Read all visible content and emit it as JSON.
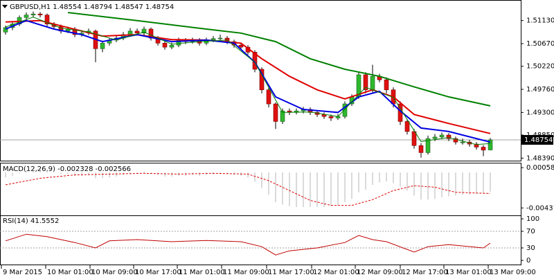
{
  "chart_data": [
    {
      "type": "candlestick",
      "title": "GBPUSD,H1",
      "up_color": "#2fb82f",
      "down_color": "#e01010",
      "price_line": true,
      "xlim": [
        -0.8,
        74.4
      ],
      "xticks": [
        {
          "value": -0.6,
          "label": "9 Mar 2015"
        },
        {
          "value": 5.8,
          "label": "10 Mar 01:00"
        },
        {
          "value": 12.2,
          "label": "10 Mar 09:00"
        },
        {
          "value": 18.5,
          "label": "10 Mar 17:00"
        },
        {
          "value": 24.8,
          "label": "11 Mar 01:00"
        },
        {
          "value": 31.2,
          "label": "11 Mar 09:00"
        },
        {
          "value": 37.7,
          "label": "11 Mar 17:00"
        },
        {
          "value": 44.2,
          "label": "12 Mar 01:00"
        },
        {
          "value": 50.5,
          "label": "12 Mar 09:00"
        },
        {
          "value": 57,
          "label": "12 Mar 17:00"
        },
        {
          "value": 63.3,
          "label": "13 Mar 01:00"
        },
        {
          "value": 69.7,
          "label": "13 Mar 09:00"
        }
      ],
      "ylim": [
        1.4834,
        1.5147
      ],
      "yticks": [
        {
          "value": 1.5113,
          "label": "1.51130"
        },
        {
          "value": 1.5067,
          "label": "1.50670"
        },
        {
          "value": 1.5022,
          "label": "1.50220"
        },
        {
          "value": 1.4976,
          "label": "1.49760"
        },
        {
          "value": 1.493,
          "label": "1.49300"
        },
        {
          "value": 1.4885,
          "label": "1.48850"
        },
        {
          "value": 1.4839,
          "label": "1.48390"
        }
      ],
      "open": [
        1.509,
        1.5099,
        1.5106,
        1.5119,
        1.5124,
        1.5126,
        1.5124,
        1.5106,
        1.5101,
        1.5092,
        1.5096,
        1.5085,
        1.5088,
        1.5092,
        1.5057,
        1.5068,
        1.5074,
        1.5078,
        1.5085,
        1.5092,
        1.5088,
        1.5096,
        1.5078,
        1.5068,
        1.506,
        1.5064,
        1.5074,
        1.5071,
        1.5074,
        1.5068,
        1.5074,
        1.5077,
        1.5078,
        1.5071,
        1.5064,
        1.506,
        1.505,
        1.5016,
        1.4975,
        1.4947,
        1.4912,
        1.4933,
        1.493,
        1.4933,
        1.4936,
        1.493,
        1.4926,
        1.4922,
        1.4919,
        1.4922,
        1.4947,
        1.4961,
        1.5005,
        1.4975,
        1.5002,
        1.4995,
        1.4975,
        1.4947,
        1.4912,
        1.4892,
        1.4864,
        1.485,
        1.4878,
        1.4881,
        1.4885,
        1.4878,
        1.4871,
        1.4871,
        1.4867,
        1.4861,
        1.48554
      ],
      "high": [
        1.5103,
        1.511,
        1.5123,
        1.5129,
        1.5131,
        1.513,
        1.5127,
        1.511,
        1.5105,
        1.5101,
        1.51,
        1.5093,
        1.5097,
        1.5095,
        1.5073,
        1.5079,
        1.5083,
        1.509,
        1.5098,
        1.5097,
        1.5101,
        1.5099,
        1.5082,
        1.5072,
        1.5069,
        1.5079,
        1.5078,
        1.5079,
        1.5078,
        1.5079,
        1.5082,
        1.5085,
        1.5082,
        1.5075,
        1.5068,
        1.5064,
        1.5054,
        1.502,
        1.4979,
        1.495,
        1.4938,
        1.4938,
        1.4938,
        1.4941,
        1.494,
        1.4934,
        1.493,
        1.4926,
        1.4927,
        1.4952,
        1.4966,
        1.5011,
        1.501,
        1.5025,
        1.5007,
        1.5,
        1.498,
        1.4952,
        1.4917,
        1.4897,
        1.4869,
        1.4884,
        1.4887,
        1.489,
        1.4889,
        1.4882,
        1.4878,
        1.4875,
        1.4871,
        1.4865,
        1.48794
      ],
      "low": [
        1.5085,
        1.5094,
        1.5102,
        1.5115,
        1.5119,
        1.5119,
        1.5101,
        1.5096,
        1.5087,
        1.5088,
        1.508,
        1.5081,
        1.5084,
        1.503,
        1.505,
        1.5063,
        1.507,
        1.5074,
        1.5081,
        1.5083,
        1.5084,
        1.5073,
        1.5063,
        1.5055,
        1.5056,
        1.506,
        1.5066,
        1.5067,
        1.5063,
        1.5064,
        1.507,
        1.5073,
        1.5066,
        1.5059,
        1.5055,
        1.5045,
        1.501,
        1.4968,
        1.494,
        1.4897,
        1.4907,
        1.4925,
        1.4926,
        1.4928,
        1.4925,
        1.4921,
        1.4917,
        1.4913,
        1.4915,
        1.4918,
        1.4943,
        1.4957,
        1.4968,
        1.497,
        1.499,
        1.4968,
        1.494,
        1.4905,
        1.4886,
        1.4858,
        1.484,
        1.4846,
        1.4873,
        1.4877,
        1.4873,
        1.4866,
        1.4866,
        1.4862,
        1.4856,
        1.4843,
        1.48547
      ],
      "close": [
        1.5099,
        1.5106,
        1.5119,
        1.5124,
        1.5126,
        1.5124,
        1.5106,
        1.5101,
        1.5092,
        1.5096,
        1.5085,
        1.5088,
        1.5092,
        1.5057,
        1.5068,
        1.5074,
        1.5078,
        1.5085,
        1.5092,
        1.5088,
        1.5096,
        1.5078,
        1.5068,
        1.506,
        1.5064,
        1.5074,
        1.5071,
        1.5074,
        1.5068,
        1.5074,
        1.5077,
        1.5078,
        1.5071,
        1.5064,
        1.506,
        1.505,
        1.5016,
        1.4975,
        1.4947,
        1.4912,
        1.4933,
        1.493,
        1.4933,
        1.4936,
        1.493,
        1.4926,
        1.4922,
        1.4919,
        1.4922,
        1.4947,
        1.4961,
        1.5005,
        1.4975,
        1.5002,
        1.4995,
        1.4975,
        1.4947,
        1.4912,
        1.4892,
        1.4864,
        1.485,
        1.4878,
        1.4881,
        1.4885,
        1.4878,
        1.4871,
        1.4871,
        1.4867,
        1.4861,
        1.4855,
        1.48754
      ],
      "series": [
        {
          "type": "line",
          "color": "#008000",
          "width": 2,
          "x": [
            9,
            19,
            29,
            34,
            39,
            44,
            49,
            54,
            59,
            64,
            70
          ],
          "values": [
            1.5129,
            1.5113,
            1.5096,
            1.5088,
            1.5071,
            1.5037,
            1.5016,
            1.5002,
            1.4981,
            1.4961,
            1.4943
          ]
        },
        {
          "type": "line",
          "color": "#e00000",
          "width": 2,
          "x": [
            0,
            5,
            9,
            14,
            19,
            24,
            29,
            34,
            37,
            41,
            45,
            49,
            53,
            56,
            59,
            64,
            70
          ],
          "values": [
            1.511,
            1.5113,
            1.5099,
            1.5082,
            1.5085,
            1.5075,
            1.5074,
            1.5068,
            1.5037,
            1.5002,
            1.4975,
            1.4957,
            1.4975,
            1.4961,
            1.4926,
            1.4908,
            1.4888
          ]
        },
        {
          "type": "line",
          "color": "#0000e0",
          "width": 2,
          "x": [
            0,
            3,
            7,
            11,
            14,
            19,
            24,
            29,
            33,
            36,
            39,
            43,
            48,
            51,
            54,
            57,
            60,
            64,
            68,
            70
          ],
          "values": [
            1.5096,
            1.5113,
            1.5096,
            1.5085,
            1.5071,
            1.5085,
            1.5071,
            1.5074,
            1.5068,
            1.503,
            1.4961,
            1.4936,
            1.493,
            1.4961,
            1.4972,
            1.4933,
            1.4899,
            1.4892,
            1.4878,
            1.4871
          ]
        },
        {
          "type": "line",
          "color": "#008000",
          "width": 1,
          "x": [
            0,
            4,
            8,
            12,
            16,
            20,
            24,
            28,
            32,
            36,
            40,
            44,
            48,
            52,
            56,
            60,
            64,
            68,
            70
          ],
          "values": [
            1.51,
            1.512,
            1.5098,
            1.509,
            1.5074,
            1.509,
            1.5066,
            1.5071,
            1.5074,
            1.503,
            1.493,
            1.4931,
            1.4922,
            1.498,
            1.496,
            1.4872,
            1.488,
            1.4866,
            1.4868
          ]
        }
      ]
    },
    {
      "type": "macd",
      "title": "MACD(12,26,9)",
      "ylim": [
        -0.0053,
        0.0011
      ],
      "yticks": [
        0.000584,
        -0.004311
      ],
      "series": [
        {
          "type": "bar",
          "color": "#b4b4b4",
          "values": [
            -0.0006,
            -0.0004,
            -0.0001,
            0.0002,
            0.0004,
            0.0004,
            0.0002,
            0.0,
            -0.0002,
            -0.0002,
            -0.0004,
            -0.0004,
            -0.0003,
            -0.0007,
            -0.0007,
            -0.0006,
            -0.0005,
            -0.0003,
            -0.0001,
            -0.0001,
            0.0001,
            -0.0001,
            -0.0003,
            -0.0005,
            -0.0005,
            -0.0004,
            -0.0004,
            -0.0003,
            -0.0004,
            -0.0003,
            -0.0002,
            -0.0002,
            -0.0002,
            -0.0003,
            -0.0004,
            -0.0006,
            -0.0011,
            -0.0019,
            -0.0027,
            -0.0036,
            -0.0039,
            -0.0041,
            -0.0042,
            -0.0042,
            -0.0042,
            -0.0042,
            -0.0042,
            -0.0041,
            -0.004,
            -0.0036,
            -0.0032,
            -0.0024,
            -0.0021,
            -0.0015,
            -0.0012,
            -0.0011,
            -0.0013,
            -0.0017,
            -0.0022,
            -0.0028,
            -0.0033,
            -0.0033,
            -0.0032,
            -0.003,
            -0.0029,
            -0.0028,
            -0.0027,
            -0.0027,
            -0.0026,
            -0.0026,
            -0.002328
          ]
        },
        {
          "type": "line",
          "style": "dashed",
          "color": "#e00000",
          "x": [
            0,
            5,
            10,
            15,
            20,
            25,
            30,
            35,
            38,
            41,
            44,
            47,
            50,
            53,
            56,
            59,
            62,
            65,
            70
          ],
          "values": [
            -0.0015,
            -0.0007,
            -0.0003,
            -0.0002,
            -0.0001,
            -0.0002,
            -0.0001,
            -0.0002,
            -0.001,
            -0.0022,
            -0.0034,
            -0.004,
            -0.004,
            -0.0033,
            -0.0022,
            -0.0016,
            -0.0018,
            -0.0024,
            -0.002566
          ]
        }
      ]
    },
    {
      "type": "line",
      "title": "RSI(14)",
      "ylim": [
        0,
        100
      ],
      "yticks": [
        100,
        70,
        30,
        0
      ],
      "levels": [
        70,
        30
      ],
      "series": [
        {
          "color": "#c00000",
          "x": [
            0,
            3,
            6,
            10,
            13,
            15,
            19,
            24,
            29,
            34,
            37,
            39,
            41,
            45,
            49,
            51,
            53,
            55,
            59,
            61,
            64,
            69,
            70
          ],
          "values": [
            47,
            63,
            57,
            43,
            30,
            47,
            50,
            45,
            48,
            45,
            33,
            13,
            23,
            30,
            43,
            60,
            50,
            45,
            20,
            33,
            38,
            30,
            41.5552
          ]
        }
      ]
    }
  ]
}
